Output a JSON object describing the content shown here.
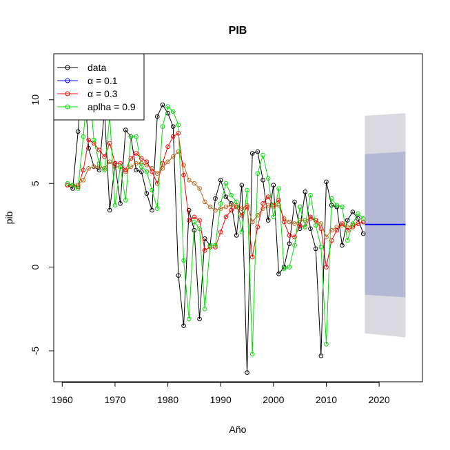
{
  "chart_data": {
    "type": "line",
    "title": "PIB",
    "xlabel": "Año",
    "ylabel": "pib",
    "xlim": [
      1958.4,
      2028.2
    ],
    "ylim": [
      -6.85,
      12.75
    ],
    "x_ticks": [
      1960,
      1970,
      1980,
      1990,
      2000,
      2010,
      2020
    ],
    "y_ticks": [
      -5,
      0,
      5,
      10
    ],
    "grid": false,
    "legend": {
      "placement": "top-left",
      "entries": [
        {
          "label": "data",
          "color": "#000000"
        },
        {
          "label": "α = 0.1",
          "color": "#0000ff"
        },
        {
          "label": "α = 0.3",
          "color": "#ff0000"
        },
        {
          "label": "aplha = 0.9",
          "color": "#00dd00"
        }
      ]
    },
    "years": [
      1961,
      1962,
      1963,
      1964,
      1965,
      1966,
      1967,
      1968,
      1969,
      1970,
      1971,
      1972,
      1973,
      1974,
      1975,
      1976,
      1977,
      1978,
      1979,
      1980,
      1981,
      1982,
      1983,
      1984,
      1985,
      1986,
      1987,
      1988,
      1989,
      1990,
      1991,
      1992,
      1993,
      1994,
      1995,
      1996,
      1997,
      1998,
      1999,
      2000,
      2001,
      2002,
      2003,
      2004,
      2005,
      2006,
      2007,
      2008,
      2009,
      2010,
      2011,
      2012,
      2013,
      2014,
      2015,
      2016,
      2017
    ],
    "series": [
      {
        "name": "data",
        "color": "#000000",
        "values": [
          4.9,
          4.7,
          8.1,
          11.9,
          7.1,
          6.0,
          5.8,
          9.4,
          3.4,
          6.2,
          3.8,
          8.2,
          7.8,
          5.8,
          5.7,
          4.4,
          3.4,
          9.0,
          9.7,
          9.2,
          8.4,
          -0.5,
          -3.5,
          3.4,
          2.2,
          -3.1,
          1.7,
          1.3,
          4.1,
          5.2,
          4.2,
          3.8,
          1.9,
          4.9,
          -6.3,
          6.8,
          6.9,
          5.2,
          2.8,
          4.9,
          -0.4,
          0.0,
          1.4,
          3.9,
          2.3,
          4.5,
          2.3,
          1.1,
          -5.3,
          5.1,
          3.7,
          3.6,
          1.3,
          2.8,
          3.3,
          2.9,
          2.0
        ]
      },
      {
        "name": "α = 0.3",
        "color": "#ff0000",
        "values": [
          4.9,
          4.9,
          4.8,
          5.8,
          7.6,
          7.4,
          7.0,
          6.6,
          7.4,
          6.2,
          6.2,
          5.8,
          6.5,
          6.8,
          6.5,
          6.3,
          5.7,
          5.0,
          6.2,
          7.2,
          7.8,
          8.0,
          5.5,
          2.8,
          3.0,
          2.8,
          1.0,
          1.2,
          1.2,
          2.1,
          3.0,
          3.4,
          3.6,
          3.1,
          3.6,
          0.6,
          2.4,
          3.8,
          4.2,
          3.7,
          4.0,
          2.7,
          1.9,
          1.8,
          2.5,
          2.4,
          3.0,
          2.8,
          2.3,
          0.0,
          1.6,
          2.2,
          2.6,
          2.2,
          2.4,
          2.6,
          2.7
        ]
      },
      {
        "name": "aplha = 0.9",
        "color": "#00dd00",
        "values": [
          5.0,
          4.9,
          4.7,
          7.8,
          11.5,
          7.6,
          6.2,
          5.8,
          9.0,
          3.7,
          6.0,
          4.0,
          7.8,
          7.8,
          6.0,
          5.7,
          4.6,
          3.5,
          8.4,
          9.6,
          9.3,
          8.5,
          0.4,
          -3.1,
          2.7,
          2.3,
          -2.5,
          1.3,
          1.3,
          3.8,
          5.0,
          4.3,
          3.9,
          2.1,
          4.6,
          -5.2,
          5.6,
          6.7,
          5.3,
          3.0,
          4.7,
          -0.1,
          0.0,
          1.3,
          3.6,
          2.4,
          4.3,
          2.5,
          1.2,
          -4.6,
          4.1,
          3.7,
          3.6,
          1.6,
          2.6,
          3.2,
          2.9
        ]
      },
      {
        "name": "α = 0.1",
        "color": "#0000ff",
        "values": []
      }
    ],
    "smooth_series": {
      "name": "α = 0.1",
      "color": "#b5651d",
      "values": [
        4.9,
        4.9,
        4.9,
        5.2,
        5.9,
        6.0,
        6.0,
        5.9,
        6.3,
        6.0,
        6.0,
        5.7,
        6.0,
        6.2,
        6.2,
        6.1,
        5.9,
        5.6,
        5.9,
        6.3,
        6.6,
        6.9,
        6.1,
        5.2,
        5.0,
        4.7,
        3.9,
        3.6,
        3.4,
        3.5,
        3.6,
        3.7,
        3.7,
        3.5,
        3.7,
        2.7,
        3.1,
        3.5,
        3.7,
        3.6,
        3.7,
        2.9,
        2.7,
        2.6,
        2.8,
        2.8,
        2.9,
        2.8,
        2.6,
        1.8,
        2.2,
        2.4,
        2.5,
        2.4,
        2.5,
        2.6,
        2.7
      ]
    },
    "forecast": {
      "x_start": 2017.3,
      "x_end": 2025,
      "mean": 2.55,
      "mean_color": "#0000ff",
      "inner_band": {
        "lower_start": -1.65,
        "lower_end": -1.8,
        "upper_start": 6.75,
        "upper_end": 6.9,
        "color": "#b3b8d4"
      },
      "outer_band": {
        "lower_start": -3.95,
        "lower_end": -4.2,
        "upper_start": 9.05,
        "upper_end": 9.2,
        "color": "#d9d9df"
      }
    }
  }
}
